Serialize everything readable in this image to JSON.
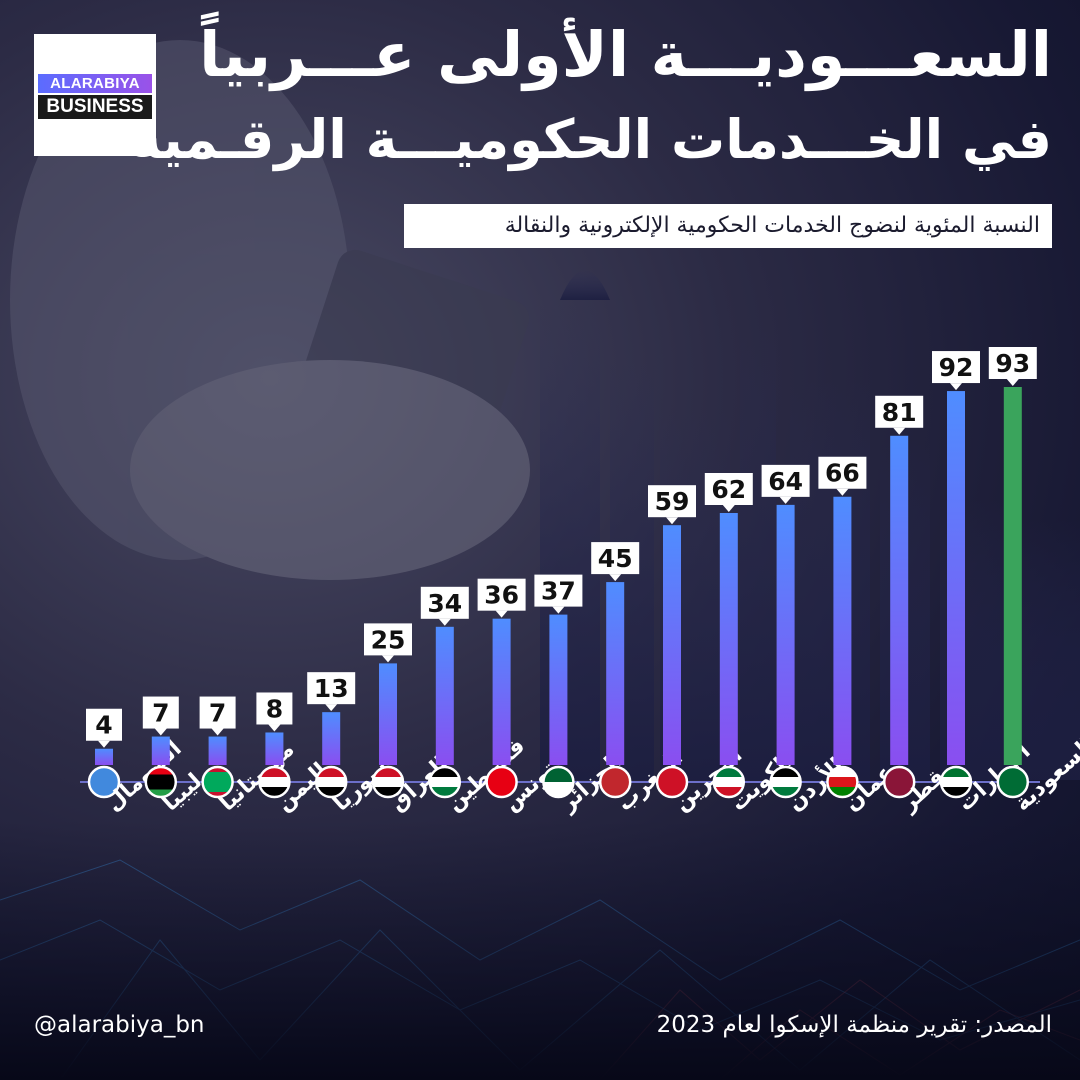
{
  "brand": {
    "line1": "ALARABIYA",
    "line2": "BUSINESS"
  },
  "header": {
    "title": "السعـــوديـــة الأولى عـــربياً",
    "subtitle": "في الخـــدمات الحكوميـــة الرقـمية",
    "caption": "النسبة المئوية لنضوج الخدمات الحكومية الإلكترونية والنقالة"
  },
  "footer": {
    "source": "المصدر: تقرير منظمة الإسكوا لعام 2023",
    "handle": "@alarabiya_bn"
  },
  "colors": {
    "bar_gradient_top": "#4f8dff",
    "bar_gradient_bottom": "#8a4ef0",
    "highlight_bar": "#3aa45c",
    "label_box": "#ffffff",
    "label_text": "#111111",
    "baseline": "#6c6fc9"
  },
  "chart_data": {
    "type": "bar",
    "title": "",
    "xlabel": "",
    "ylabel": "",
    "ylim": [
      0,
      100
    ],
    "grid": false,
    "categories": [
      "الصومال",
      "ليبيا",
      "موريتانيا",
      "اليمن",
      "سوريا",
      "العراق",
      "فلسطين",
      "تونس",
      "الجزائر",
      "المغرب",
      "البحرين",
      "الكويت",
      "الأردن",
      "عمان",
      "قطر",
      "الإمارات",
      "السعودية"
    ],
    "values": [
      4,
      7,
      7,
      8,
      13,
      25,
      34,
      36,
      37,
      45,
      59,
      62,
      64,
      66,
      81,
      92,
      93
    ],
    "highlight": "السعودية",
    "flag_icons": [
      "somalia-flag-icon",
      "libya-flag-icon",
      "mauritania-flag-icon",
      "yemen-flag-icon",
      "syria-flag-icon",
      "iraq-flag-icon",
      "palestine-flag-icon",
      "tunisia-flag-icon",
      "algeria-flag-icon",
      "morocco-flag-icon",
      "bahrain-flag-icon",
      "kuwait-flag-icon",
      "jordan-flag-icon",
      "oman-flag-icon",
      "qatar-flag-icon",
      "uae-flag-icon",
      "saudi-flag-icon"
    ]
  }
}
